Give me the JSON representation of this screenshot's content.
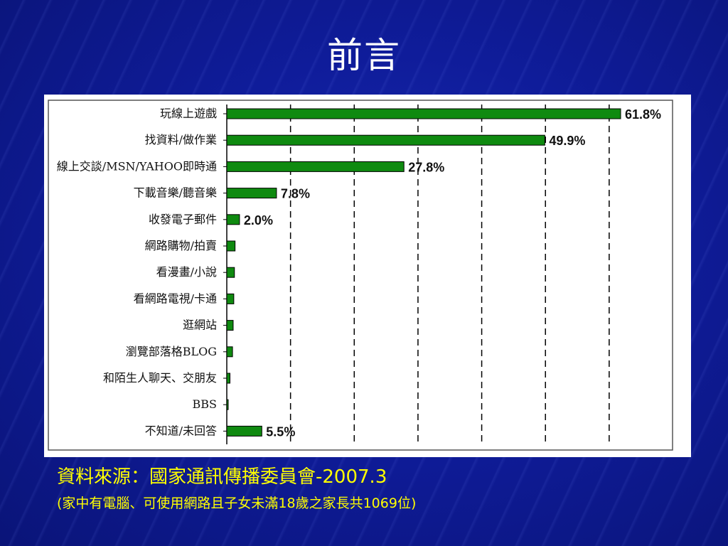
{
  "slide": {
    "title": "前言",
    "source_line1": "資料來源：國家通訊傳播委員會-2007.3",
    "source_line2": "(家中有電腦、可使用網路且子女未滿18歲之家長共1069位)"
  },
  "colors": {
    "bar": "#0f8a10",
    "background": "#0f1c9a",
    "source_text": "#ffff00"
  },
  "chart_data": {
    "type": "bar",
    "orientation": "horizontal",
    "categories": [
      "玩線上遊戲",
      "找資料/做作業",
      "線上交談/MSN/YAHOO即時通",
      "下載音樂/聽音樂",
      "收發電子郵件",
      "網路購物/拍賣",
      "看漫畫/小說",
      "看網路電視/卡通",
      "逛網站",
      "瀏覽部落格BLOG",
      "和陌生人聊天、交朋友",
      "BBS",
      "不知道/未回答"
    ],
    "values": [
      61.8,
      49.9,
      27.8,
      7.8,
      2.0,
      1.3,
      1.2,
      1.1,
      1.0,
      0.9,
      0.5,
      0.2,
      5.5
    ],
    "data_labels": [
      "61.8%",
      "49.9%",
      "27.8%",
      "7.8%",
      "2.0%",
      "",
      "",
      "",
      "",
      "",
      "",
      "",
      "5.5%"
    ],
    "xlim": [
      0,
      70
    ],
    "gridlines": [
      10,
      20,
      30,
      40,
      50,
      60
    ],
    "grid": "dashed-vertical",
    "legend": "none"
  }
}
